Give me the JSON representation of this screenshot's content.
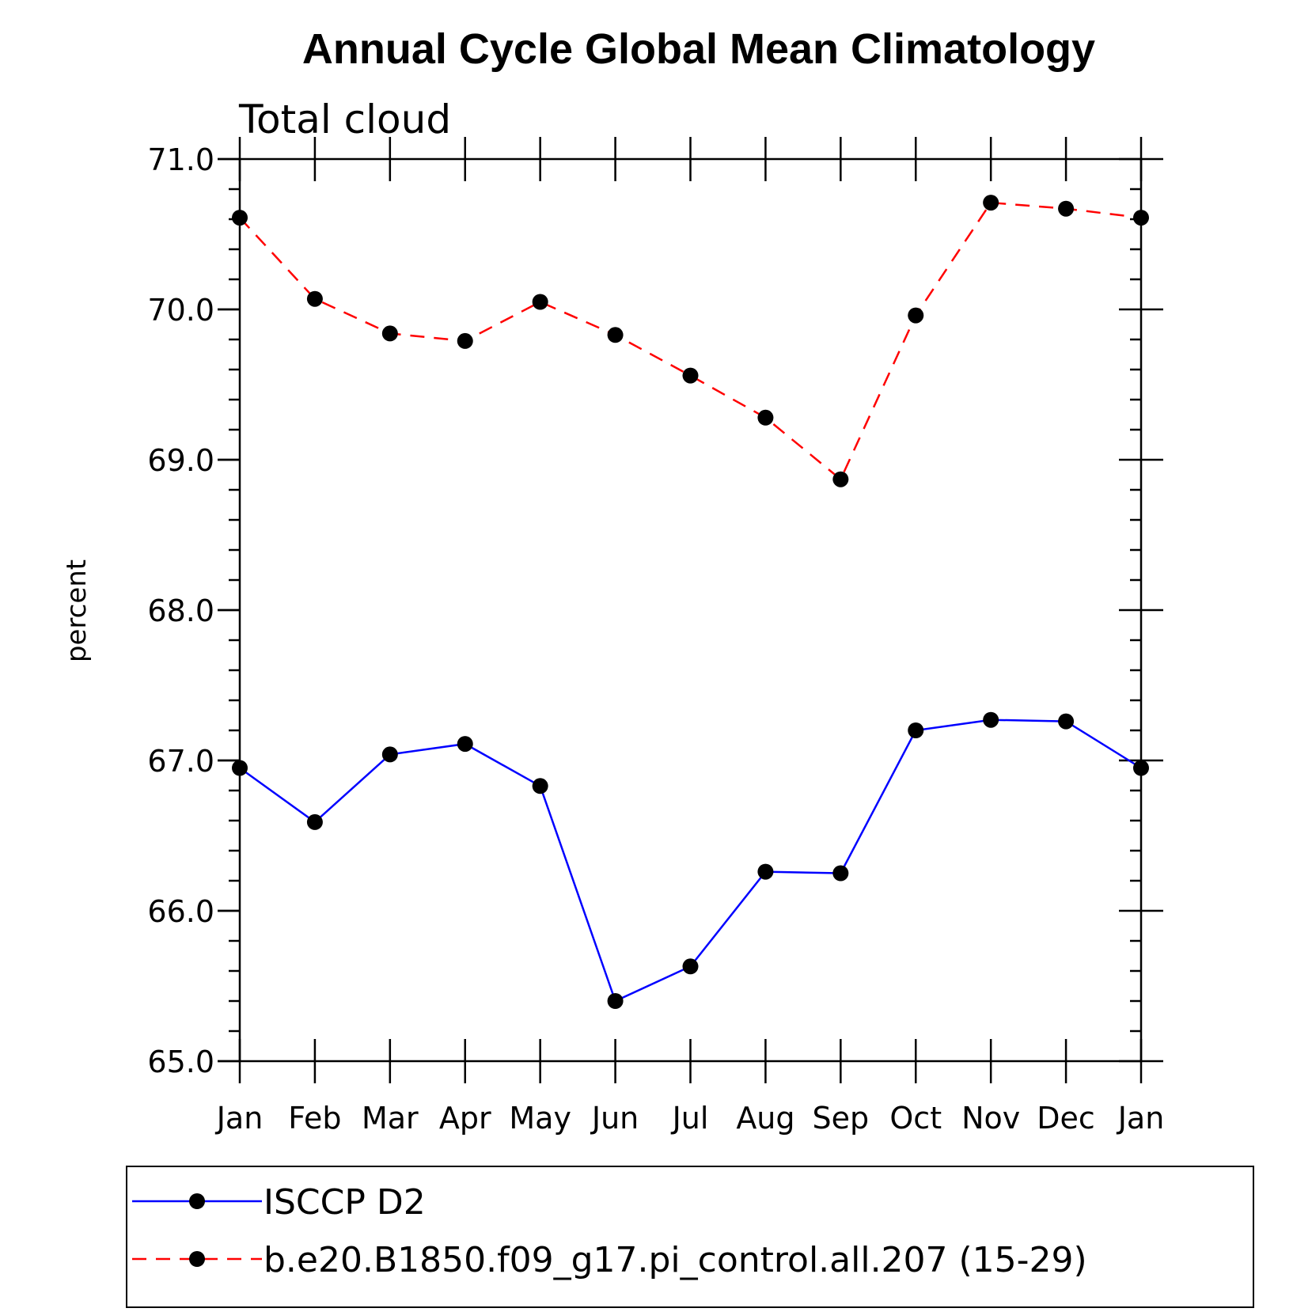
{
  "chart_data": {
    "type": "line",
    "title": "Annual Cycle Global Mean Climatology",
    "subtitle": "Total cloud",
    "xlabel": "",
    "ylabel": "percent",
    "categories": [
      "Jan",
      "Feb",
      "Mar",
      "Apr",
      "May",
      "Jun",
      "Jul",
      "Aug",
      "Sep",
      "Oct",
      "Nov",
      "Dec",
      "Jan"
    ],
    "ylim": [
      65.0,
      71.0
    ],
    "yticks": [
      "65.0",
      "66.0",
      "67.0",
      "68.0",
      "69.0",
      "70.0",
      "71.0"
    ],
    "grid": false,
    "legend_position": "bottom",
    "series": [
      {
        "name": "ISCCP D2",
        "color": "#0000ff",
        "line_style": "solid",
        "values": [
          66.95,
          66.59,
          67.04,
          67.11,
          66.83,
          65.4,
          65.63,
          66.26,
          66.25,
          67.2,
          67.27,
          67.26,
          66.95
        ]
      },
      {
        "name": "b.e20.B1850.f09_g17.pi_control.all.207 (15-29)",
        "color": "#ff0000",
        "line_style": "dashed",
        "values": [
          70.61,
          70.07,
          69.84,
          69.79,
          70.05,
          69.83,
          69.56,
          69.28,
          68.87,
          69.96,
          70.71,
          70.67,
          70.61
        ]
      }
    ]
  }
}
